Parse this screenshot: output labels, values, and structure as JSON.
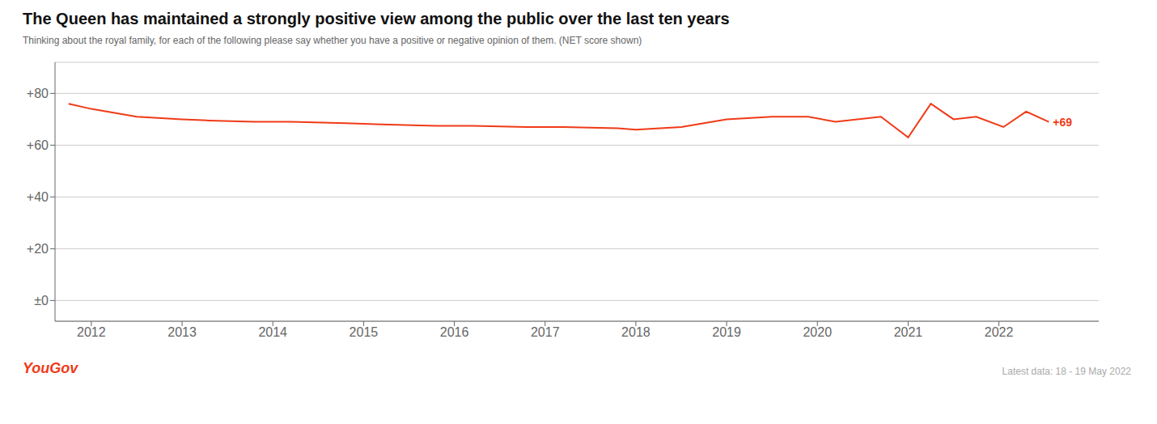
{
  "chart_data": {
    "type": "line",
    "title": "The Queen has maintained a strongly positive view among the public over the last ten years",
    "subtitle": "Thinking about the royal family, for each of the following please say whether you have a positive or negative opinion of them. (NET score shown)",
    "annotation": "+69",
    "brand": "YouGov",
    "footer": "Latest data: 18 - 19 May 2022",
    "color": "#f03a17",
    "x": [
      2011.75,
      2012.0,
      2012.5,
      2013.0,
      2013.3,
      2013.8,
      2014.2,
      2014.8,
      2015.2,
      2015.8,
      2016.2,
      2016.8,
      2017.2,
      2017.8,
      2018.0,
      2018.5,
      2019.0,
      2019.5,
      2019.9,
      2020.2,
      2020.7,
      2021.0,
      2021.25,
      2021.5,
      2021.75,
      2022.05,
      2022.3,
      2022.55
    ],
    "values": [
      76,
      74,
      71,
      70,
      69.5,
      69,
      69,
      68.5,
      68,
      67.5,
      67.5,
      67,
      67,
      66.5,
      66,
      67,
      70,
      71,
      71,
      69,
      71,
      63,
      76,
      70,
      71,
      67,
      73,
      69
    ],
    "xlim": [
      2011.6,
      2023.1
    ],
    "xticks": [
      2012,
      2013,
      2014,
      2015,
      2016,
      2017,
      2018,
      2019,
      2020,
      2021,
      2022
    ],
    "ylim": [
      -8,
      92
    ],
    "yticks": [
      {
        "value": 0,
        "label": "±0"
      },
      {
        "value": 20,
        "label": "+20"
      },
      {
        "value": 40,
        "label": "+40"
      },
      {
        "value": 60,
        "label": "+60"
      },
      {
        "value": 80,
        "label": "+80"
      }
    ],
    "grid": true
  }
}
